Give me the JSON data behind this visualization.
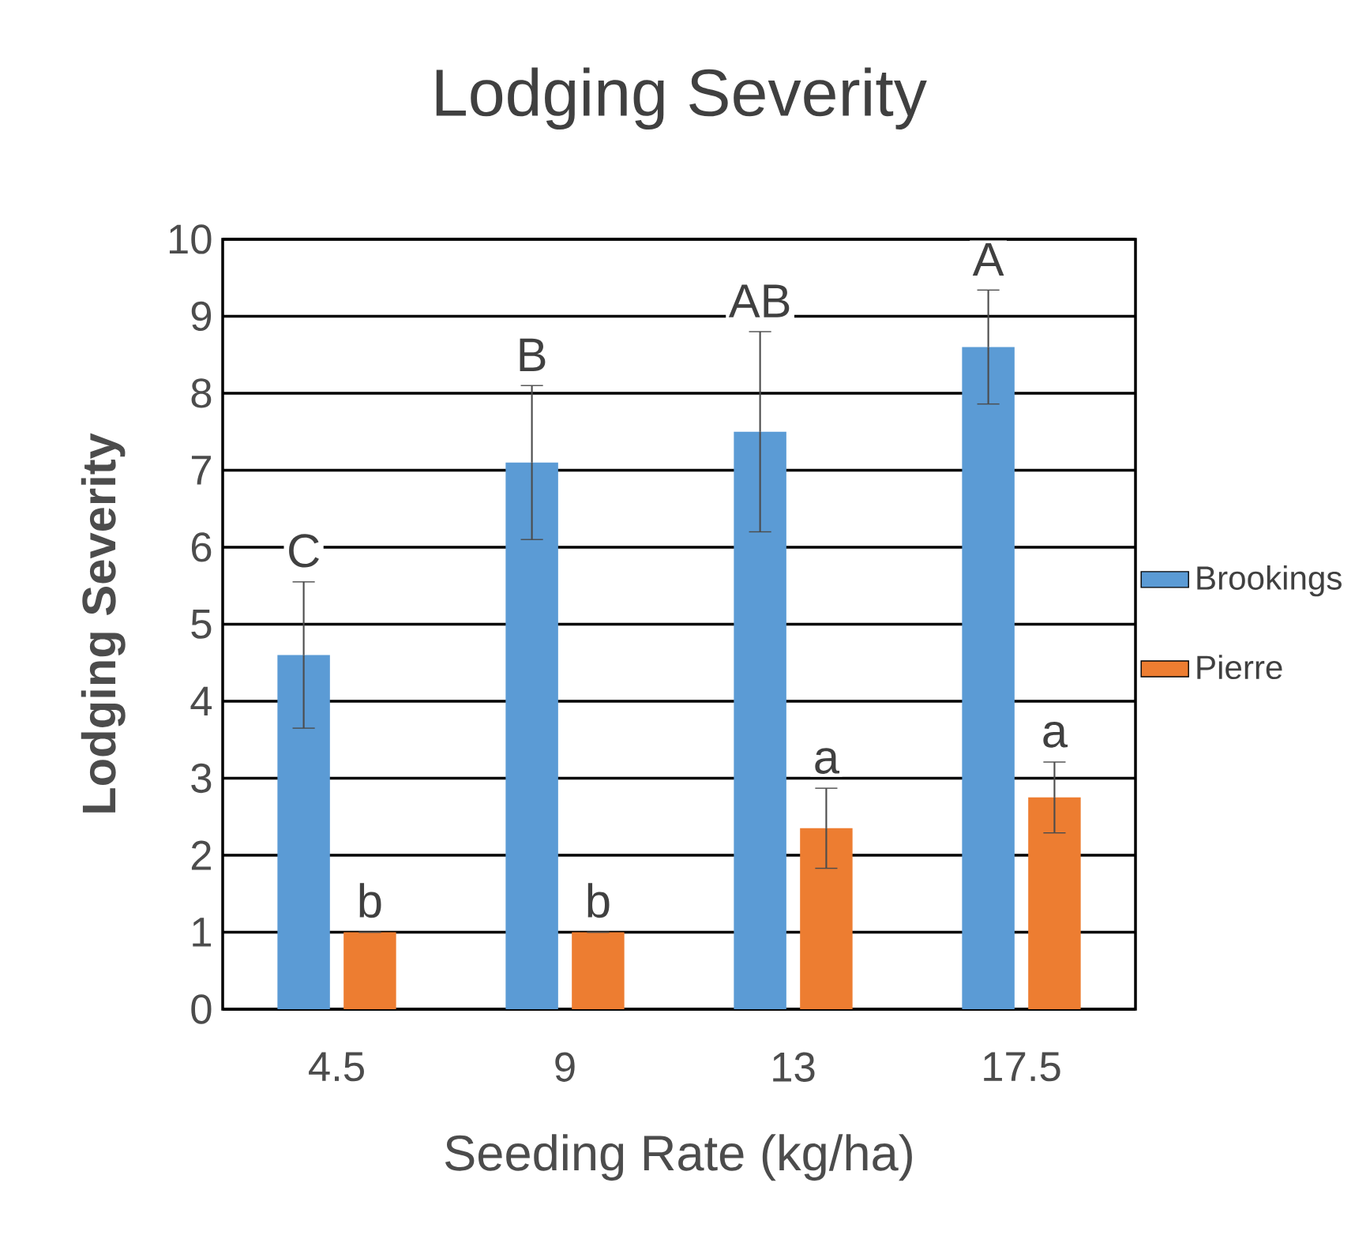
{
  "chart_data": {
    "type": "bar",
    "title": "Lodging Severity",
    "xlabel": "Seeding Rate (kg/ha)",
    "ylabel": "Lodging Severity",
    "categories": [
      "4.5",
      "9",
      "13",
      "17.5"
    ],
    "series": [
      {
        "name": "Brookings",
        "color": "#5b9bd5",
        "values": [
          4.6,
          7.1,
          7.5,
          8.6
        ],
        "errors": [
          0.95,
          1.0,
          1.3,
          0.74
        ]
      },
      {
        "name": "Pierre",
        "color": "#ed7d31",
        "values": [
          1.0,
          1.0,
          2.35,
          2.75
        ],
        "errors": [
          0,
          0,
          0.52,
          0.46
        ]
      }
    ],
    "ylim": [
      0,
      10
    ],
    "yticks": [
      0,
      1,
      2,
      3,
      4,
      5,
      6,
      7,
      8,
      9,
      10
    ],
    "grid": "y",
    "legend": "right",
    "annotations": [
      "C",
      "B",
      "AB",
      "A",
      "b",
      "b",
      "a",
      "a"
    ]
  }
}
